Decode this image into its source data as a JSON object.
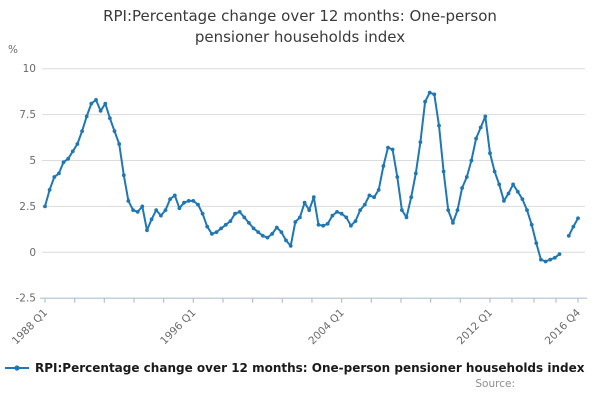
{
  "title": {
    "line1": "RPI:Percentage change over 12 months: One-person",
    "line2": "pensioner households index"
  },
  "y_axis": {
    "unit_label": "%",
    "tick_labels": [
      "10",
      "7.5",
      "5",
      "2.5",
      "0",
      "-2.5"
    ],
    "tick_values": [
      10,
      7.5,
      5,
      2.5,
      0,
      -2.5
    ]
  },
  "x_axis": {
    "tick_labels": [
      "1988 Q1",
      "1996 Q1",
      "2004 Q1",
      "2012 Q1",
      "2016 Q4"
    ]
  },
  "legend": {
    "label": "RPI:Percentage change over 12 months: One-person pensioner households index"
  },
  "source": {
    "label": "Source:"
  },
  "colors": {
    "line": "#1f77b4",
    "grid": "#dcdcdc",
    "axis": "#b0c1d2",
    "tick_text": "#6a6a6a"
  },
  "chart_data": {
    "type": "line",
    "title": "RPI:Percentage change over 12 months: One-person pensioner households index",
    "unit": "%",
    "frequency": "quarterly",
    "start": "1988 Q1",
    "end": "2016 Q4",
    "ylim": [
      -2.5,
      10
    ],
    "grid": true,
    "legend_position": "bottom",
    "x_tick_labels": [
      "1988 Q1",
      "1996 Q1",
      "2004 Q1",
      "2012 Q1",
      "2016 Q4"
    ],
    "label_quarter_indexes": [
      0,
      32,
      64,
      96,
      115
    ],
    "minor_ticks_between_labels": [
      4,
      4,
      4,
      3
    ],
    "series": [
      {
        "name": "RPI:Percentage change over 12 months: One-person pensioner households index",
        "values": [
          2.5,
          3.4,
          4.1,
          4.3,
          4.9,
          5.1,
          5.5,
          5.9,
          6.6,
          7.4,
          8.1,
          8.3,
          7.7,
          8.1,
          7.3,
          6.6,
          5.9,
          4.2,
          2.8,
          2.3,
          2.2,
          2.5,
          1.2,
          1.8,
          2.3,
          2.0,
          2.3,
          2.9,
          3.1,
          2.4,
          2.7,
          2.8,
          2.8,
          2.6,
          2.1,
          1.4,
          1.0,
          1.1,
          1.3,
          1.5,
          1.7,
          2.1,
          2.2,
          1.9,
          1.6,
          1.3,
          1.1,
          0.9,
          0.8,
          1.0,
          1.35,
          1.1,
          0.65,
          0.35,
          1.65,
          1.9,
          2.7,
          2.3,
          3.0,
          1.5,
          1.45,
          1.55,
          2.0,
          2.2,
          2.1,
          1.9,
          1.45,
          1.7,
          2.3,
          2.6,
          3.1,
          3.0,
          3.4,
          4.7,
          5.7,
          5.6,
          4.1,
          2.3,
          1.9,
          3.0,
          4.3,
          6.0,
          8.2,
          8.7,
          8.6,
          6.9,
          4.4,
          2.3,
          1.6,
          2.3,
          3.5,
          4.1,
          5.0,
          6.2,
          6.8,
          7.4,
          5.4,
          4.4,
          3.7,
          2.8,
          3.2,
          3.7,
          3.3,
          2.9,
          2.3,
          1.5,
          0.5,
          -0.4,
          -0.5,
          -0.4,
          -0.3,
          -0.1,
          null,
          0.9,
          1.4,
          1.85
        ]
      }
    ]
  }
}
